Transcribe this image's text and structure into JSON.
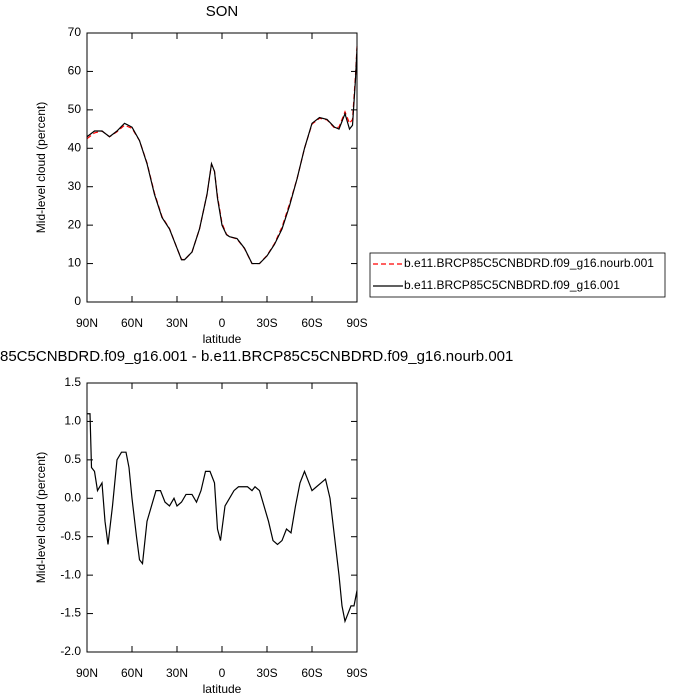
{
  "chart_data": [
    {
      "type": "line",
      "title": "SON",
      "xlabel": "latitude",
      "ylabel": "Mid-level cloud (percent)",
      "x": [
        90,
        85,
        80,
        75,
        70,
        65,
        60,
        55,
        50,
        45,
        40,
        35,
        30,
        27,
        25,
        20,
        15,
        10,
        7,
        5,
        3,
        0,
        -3,
        -5,
        -10,
        -15,
        -20,
        -25,
        -30,
        -35,
        -40,
        -45,
        -50,
        -55,
        -60,
        -65,
        -70,
        -75,
        -78,
        -80,
        -82,
        -85,
        -87,
        -89,
        -90
      ],
      "series": [
        {
          "name": "b.e11.BRCP85C5CNBDRD.f09_g16.nourb.001",
          "color": "#ff0000",
          "dashed": true,
          "values": [
            42.5,
            44,
            44.5,
            43,
            44.3,
            46,
            45.2,
            42,
            36.2,
            28.3,
            22.2,
            19.1,
            14,
            11.1,
            11,
            13,
            19,
            28,
            35.8,
            34,
            27.5,
            20.5,
            17.6,
            17,
            16.4,
            13.9,
            10,
            10,
            12.1,
            15.2,
            19.5,
            25.5,
            32,
            40,
            46.3,
            47.8,
            47.4,
            45.3,
            45.5,
            47.5,
            49.5,
            46.5,
            47.5,
            59,
            66.5
          ]
        },
        {
          "name": "b.e11.BRCP85C5CNBDRD.f09_g16.001",
          "color": "#000000",
          "dashed": false,
          "values": [
            43,
            44.5,
            44.5,
            43,
            44.5,
            46.5,
            45.5,
            42,
            36,
            28,
            22,
            19,
            14,
            11,
            11,
            13,
            19,
            28,
            36,
            34,
            27,
            20,
            17.5,
            17,
            16.5,
            14,
            10,
            10,
            12,
            15,
            19,
            25,
            32,
            40,
            46.5,
            48,
            47.5,
            45.5,
            45,
            47,
            49,
            45,
            46,
            58,
            66
          ]
        }
      ],
      "xlim": [
        90,
        -90
      ],
      "xticks": [
        {
          "value": 90,
          "label": "90N"
        },
        {
          "value": 60,
          "label": "60N"
        },
        {
          "value": 30,
          "label": "30N"
        },
        0,
        {
          "value": -30,
          "label": "30S"
        },
        {
          "value": -60,
          "label": "60S"
        },
        {
          "value": -90,
          "label": "90S"
        }
      ],
      "ylim": [
        0,
        70
      ],
      "yticks": [
        0,
        10,
        20,
        30,
        40,
        50,
        60,
        70
      ],
      "legend": "outside-right"
    },
    {
      "type": "line",
      "title": "85C5CNBDRD.f09_g16.001 - b.e11.BRCP85C5CNBDRD.f09_g16.nourb.001",
      "xlabel": "latitude",
      "ylabel": "Mid-level cloud (percent)",
      "x": [
        90,
        88,
        87,
        85,
        83,
        80,
        78,
        76,
        73,
        70,
        67,
        64,
        62,
        60,
        57,
        55,
        53,
        50,
        47,
        44,
        41,
        38,
        35,
        32,
        30,
        27,
        24,
        20,
        17,
        14,
        11,
        8,
        5,
        3,
        1,
        -2,
        -5,
        -8,
        -11,
        -14,
        -17,
        -20,
        -22,
        -25,
        -28,
        -31,
        -34,
        -37,
        -40,
        -43,
        -46,
        -49,
        -52,
        -55,
        -58,
        -60,
        -63,
        -66,
        -69,
        -72,
        -75,
        -78,
        -80,
        -82,
        -84,
        -86,
        -88,
        -90
      ],
      "series": [
        {
          "color": "#000000",
          "dashed": false,
          "values": [
            1.1,
            1.1,
            0.4,
            0.35,
            0.1,
            0.2,
            -0.3,
            -0.6,
            -0.1,
            0.5,
            0.6,
            0.6,
            0.4,
            0.0,
            -0.5,
            -0.8,
            -0.85,
            -0.3,
            -0.1,
            0.1,
            0.1,
            -0.05,
            -0.1,
            0.0,
            -0.1,
            -0.05,
            0.05,
            0.05,
            -0.05,
            0.1,
            0.35,
            0.35,
            0.2,
            -0.4,
            -0.55,
            -0.1,
            0.0,
            0.1,
            0.15,
            0.15,
            0.15,
            0.1,
            0.15,
            0.1,
            -0.1,
            -0.3,
            -0.55,
            -0.6,
            -0.55,
            -0.4,
            -0.45,
            -0.1,
            0.2,
            0.35,
            0.2,
            0.1,
            0.15,
            0.2,
            0.25,
            0.0,
            -0.5,
            -1.0,
            -1.4,
            -1.6,
            -1.5,
            -1.4,
            -1.4,
            -1.2
          ]
        }
      ],
      "xlim": [
        90,
        -90
      ],
      "xticks": [
        {
          "value": 90,
          "label": "90N"
        },
        {
          "value": 60,
          "label": "60N"
        },
        {
          "value": 30,
          "label": "30N"
        },
        0,
        {
          "value": -30,
          "label": "30S"
        },
        {
          "value": -60,
          "label": "60S"
        },
        {
          "value": -90,
          "label": "90S"
        }
      ],
      "ylim": [
        -2.0,
        1.5
      ],
      "yticks": [
        {
          "value": -2.0,
          "label": "-2.0"
        },
        -1.5,
        {
          "value": -1.0,
          "label": "-1.0"
        },
        -0.5,
        {
          "value": 0.0,
          "label": "0.0"
        },
        0.5,
        {
          "value": 1.0,
          "label": "1.0"
        },
        1.5
      ]
    }
  ]
}
